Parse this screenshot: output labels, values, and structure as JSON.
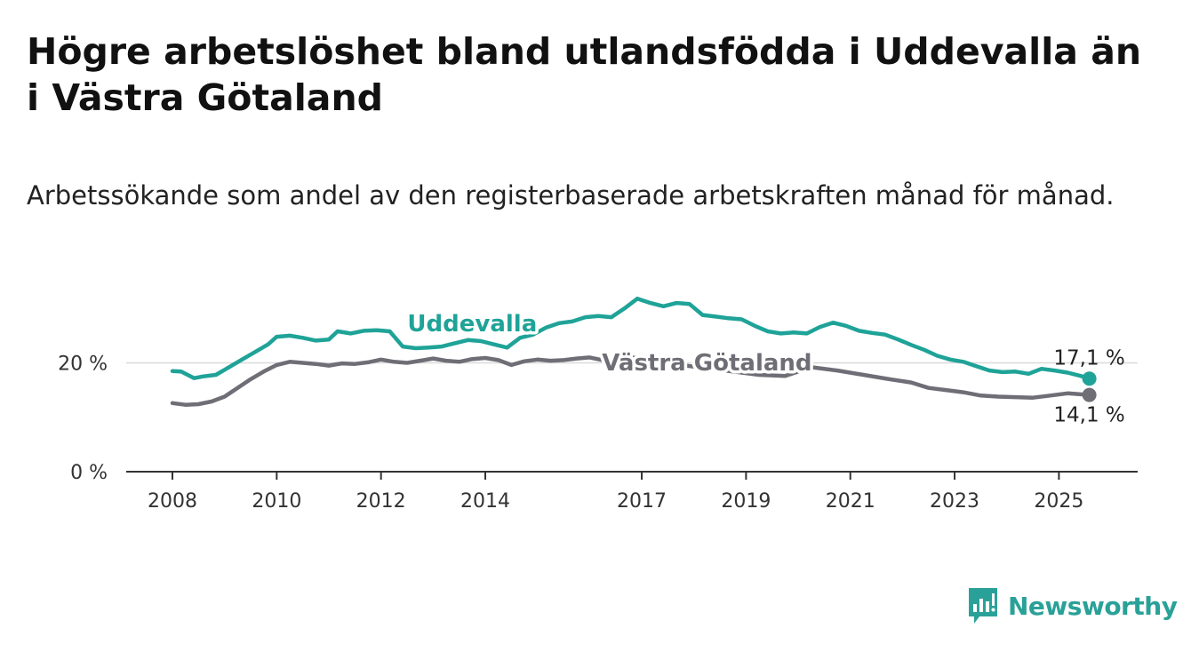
{
  "title": "Högre arbetslöshet bland utlandsfödda i Uddevalla än i Västra Götaland",
  "subtitle": "Arbetssökande som andel av den registerbaserade arbetskraften månad för månad.",
  "brand": {
    "name": "Newsworthy",
    "color": "#2aa198",
    "icon": "bar-chart-logo-icon"
  },
  "chart_data": {
    "type": "line",
    "ylim": [
      0,
      32
    ],
    "grid": true,
    "xlim": [
      "2008-01",
      "2025-12"
    ],
    "x_ticks": [
      "2008",
      "2010",
      "2012",
      "2014",
      "2017",
      "2019",
      "2021",
      "2023",
      "2025"
    ],
    "y_ticks": [
      {
        "value": 0,
        "label": "0 %"
      },
      {
        "value": 20,
        "label": "20 %"
      }
    ],
    "series": [
      {
        "name": "Uddevalla",
        "color": "#1fa398",
        "end_label": "17,1 %",
        "points": [
          [
            "2008-01",
            18.5
          ],
          [
            "2008-03",
            18.4
          ],
          [
            "2008-06",
            17.2
          ],
          [
            "2008-08",
            17.5
          ],
          [
            "2008-11",
            17.8
          ],
          [
            "2009-02",
            19.2
          ],
          [
            "2009-05",
            20.6
          ],
          [
            "2009-08",
            22.0
          ],
          [
            "2009-11",
            23.4
          ],
          [
            "2010-01",
            24.8
          ],
          [
            "2010-04",
            25.0
          ],
          [
            "2010-07",
            24.6
          ],
          [
            "2010-10",
            24.1
          ],
          [
            "2011-01",
            24.3
          ],
          [
            "2011-03",
            25.8
          ],
          [
            "2011-06",
            25.4
          ],
          [
            "2011-09",
            25.9
          ],
          [
            "2011-12",
            26.0
          ],
          [
            "2012-03",
            25.8
          ],
          [
            "2012-06",
            23.0
          ],
          [
            "2012-09",
            22.7
          ],
          [
            "2012-12",
            22.8
          ],
          [
            "2013-03",
            23.0
          ],
          [
            "2013-06",
            23.6
          ],
          [
            "2013-09",
            24.2
          ],
          [
            "2013-12",
            24.0
          ],
          [
            "2014-03",
            23.4
          ],
          [
            "2014-06",
            22.8
          ],
          [
            "2014-09",
            24.6
          ],
          [
            "2014-12",
            25.2
          ],
          [
            "2015-03",
            26.5
          ],
          [
            "2015-06",
            27.3
          ],
          [
            "2015-09",
            27.6
          ],
          [
            "2015-12",
            28.4
          ],
          [
            "2016-03",
            28.6
          ],
          [
            "2016-06",
            28.4
          ],
          [
            "2016-09",
            30.0
          ],
          [
            "2016-12",
            31.8
          ],
          [
            "2017-03",
            31.0
          ],
          [
            "2017-06",
            30.4
          ],
          [
            "2017-09",
            31.0
          ],
          [
            "2017-12",
            30.8
          ],
          [
            "2018-03",
            28.8
          ],
          [
            "2018-06",
            28.5
          ],
          [
            "2018-09",
            28.2
          ],
          [
            "2018-12",
            28.0
          ],
          [
            "2019-03",
            26.8
          ],
          [
            "2019-06",
            25.8
          ],
          [
            "2019-09",
            25.4
          ],
          [
            "2019-12",
            25.6
          ],
          [
            "2020-03",
            25.4
          ],
          [
            "2020-06",
            26.6
          ],
          [
            "2020-09",
            27.4
          ],
          [
            "2020-12",
            26.8
          ],
          [
            "2021-03",
            25.9
          ],
          [
            "2021-06",
            25.5
          ],
          [
            "2021-09",
            25.2
          ],
          [
            "2021-12",
            24.3
          ],
          [
            "2022-03",
            23.3
          ],
          [
            "2022-06",
            22.4
          ],
          [
            "2022-09",
            21.3
          ],
          [
            "2022-12",
            20.6
          ],
          [
            "2023-03",
            20.2
          ],
          [
            "2023-06",
            19.4
          ],
          [
            "2023-09",
            18.6
          ],
          [
            "2023-12",
            18.3
          ],
          [
            "2024-03",
            18.4
          ],
          [
            "2024-06",
            18.0
          ],
          [
            "2024-09",
            18.9
          ],
          [
            "2024-12",
            18.6
          ],
          [
            "2025-03",
            18.2
          ],
          [
            "2025-06",
            17.6
          ],
          [
            "2025-08",
            17.1
          ]
        ]
      },
      {
        "name": "Västra Götaland",
        "color": "#6f6e76",
        "end_label": "14,1 %",
        "points": [
          [
            "2008-01",
            12.6
          ],
          [
            "2008-04",
            12.3
          ],
          [
            "2008-07",
            12.4
          ],
          [
            "2008-10",
            12.9
          ],
          [
            "2009-01",
            13.8
          ],
          [
            "2009-04",
            15.4
          ],
          [
            "2009-07",
            17.0
          ],
          [
            "2009-10",
            18.4
          ],
          [
            "2010-01",
            19.6
          ],
          [
            "2010-04",
            20.2
          ],
          [
            "2010-07",
            20.0
          ],
          [
            "2010-10",
            19.8
          ],
          [
            "2011-01",
            19.5
          ],
          [
            "2011-04",
            19.9
          ],
          [
            "2011-07",
            19.8
          ],
          [
            "2011-10",
            20.1
          ],
          [
            "2012-01",
            20.6
          ],
          [
            "2012-04",
            20.2
          ],
          [
            "2012-07",
            20.0
          ],
          [
            "2012-10",
            20.4
          ],
          [
            "2013-01",
            20.8
          ],
          [
            "2013-04",
            20.4
          ],
          [
            "2013-07",
            20.2
          ],
          [
            "2013-10",
            20.7
          ],
          [
            "2014-01",
            20.9
          ],
          [
            "2014-04",
            20.5
          ],
          [
            "2014-07",
            19.6
          ],
          [
            "2014-10",
            20.3
          ],
          [
            "2015-01",
            20.6
          ],
          [
            "2015-04",
            20.4
          ],
          [
            "2015-07",
            20.5
          ],
          [
            "2015-10",
            20.8
          ],
          [
            "2016-01",
            21.0
          ],
          [
            "2016-04",
            20.5
          ],
          [
            "2016-07",
            20.4
          ],
          [
            "2016-10",
            21.0
          ],
          [
            "2017-01",
            20.9
          ],
          [
            "2017-04",
            20.6
          ],
          [
            "2017-07",
            20.2
          ],
          [
            "2017-10",
            19.6
          ],
          [
            "2018-04",
            19.0
          ],
          [
            "2018-10",
            18.4
          ],
          [
            "2019-04",
            17.8
          ],
          [
            "2019-10",
            17.6
          ],
          [
            "2020-04",
            19.2
          ],
          [
            "2020-10",
            18.6
          ],
          [
            "2021-04",
            17.8
          ],
          [
            "2021-10",
            17.0
          ],
          [
            "2022-03",
            16.4
          ],
          [
            "2022-07",
            15.4
          ],
          [
            "2022-11",
            15.0
          ],
          [
            "2023-03",
            14.6
          ],
          [
            "2023-07",
            14.0
          ],
          [
            "2023-11",
            13.8
          ],
          [
            "2024-03",
            13.7
          ],
          [
            "2024-07",
            13.6
          ],
          [
            "2024-11",
            14.0
          ],
          [
            "2025-03",
            14.4
          ],
          [
            "2025-08",
            14.1
          ]
        ]
      }
    ],
    "inline_labels": [
      {
        "series": "Uddevalla",
        "text": "Uddevalla",
        "x": "2013-10",
        "y": 25.8,
        "color": "#1fa398"
      },
      {
        "series": "Västra Götaland",
        "text": "Västra Götaland",
        "x": "2018-04",
        "y": 18.6,
        "color": "#6f6e76"
      }
    ]
  }
}
